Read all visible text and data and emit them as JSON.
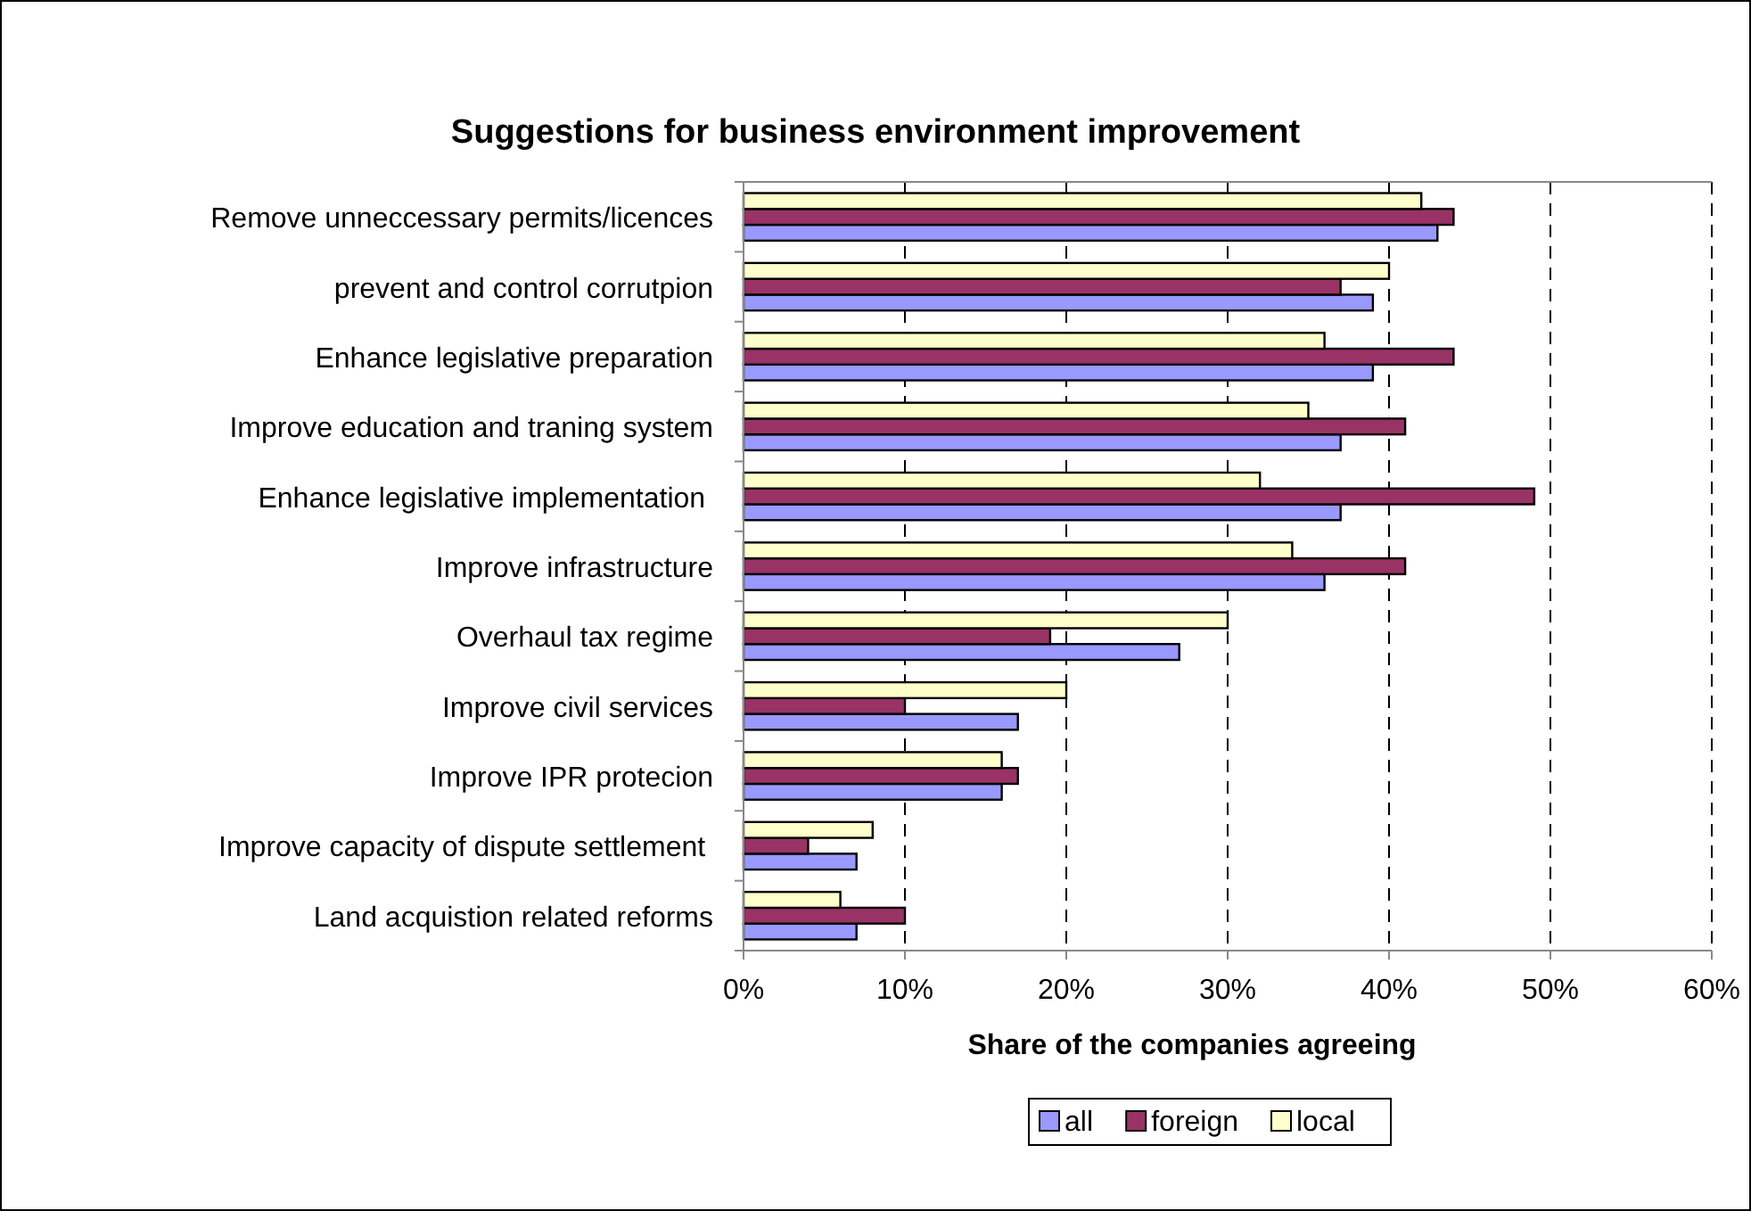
{
  "chart_data": {
    "type": "bar",
    "orientation": "horizontal",
    "title": "Suggestions for business environment improvement",
    "xlabel": "Share of the companies agreeing",
    "categories": [
      "Remove unneccessary permits/licences",
      "prevent and control corrutpion",
      "Enhance legislative preparation",
      "Improve education and traning system",
      "Enhance legislative implementation ",
      "Improve infrastructure",
      "Overhaul tax regime",
      "Improve civil services",
      "Improve IPR protecion",
      "Improve capacity of dispute settlement ",
      "Land acquistion related reforms"
    ],
    "series": [
      {
        "name": "all",
        "color": "#9999ff",
        "values": [
          43,
          39,
          39,
          37,
          37,
          36,
          27,
          17,
          16,
          7,
          7
        ]
      },
      {
        "name": "foreign",
        "color": "#993366",
        "values": [
          44,
          37,
          44,
          41,
          49,
          41,
          19,
          10,
          17,
          4,
          10
        ]
      },
      {
        "name": "local",
        "color": "#ffffcc",
        "values": [
          42,
          40,
          36,
          35,
          32,
          34,
          30,
          20,
          16,
          8,
          6
        ]
      }
    ],
    "xlim": [
      0,
      60
    ],
    "xticks": [
      {
        "value": 0,
        "label": "0%"
      },
      {
        "value": 10,
        "label": "10%"
      },
      {
        "value": 20,
        "label": "20%"
      },
      {
        "value": 30,
        "label": "30%"
      },
      {
        "value": 40,
        "label": "40%"
      },
      {
        "value": 50,
        "label": "50%"
      },
      {
        "value": 60,
        "label": "60%"
      }
    ],
    "grid": "x",
    "legend": "bottom"
  }
}
